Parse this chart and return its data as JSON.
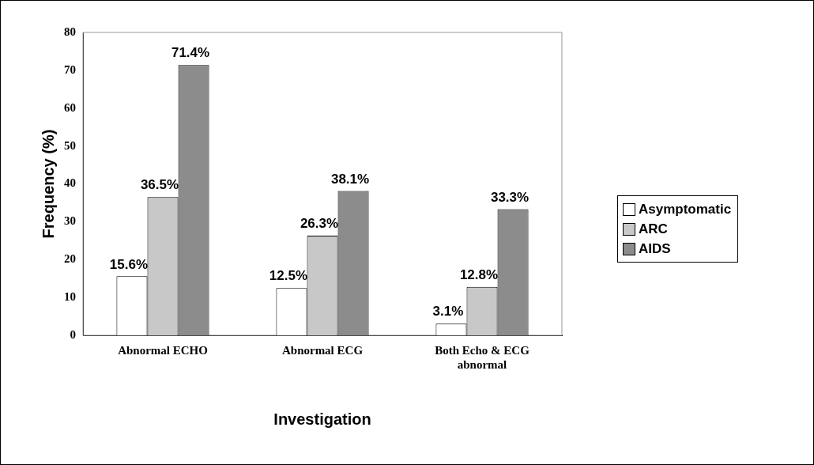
{
  "chart_data": {
    "type": "bar",
    "categories": [
      "Abnormal ECHO",
      "Abnormal ECG",
      "Both Echo & ECG abnormal"
    ],
    "series": [
      {
        "name": "Asymptomatic",
        "color": "#ffffff",
        "values": [
          15.6,
          12.5,
          3.1
        ],
        "value_labels": [
          "15.6%",
          "12.5%",
          "3.1%"
        ]
      },
      {
        "name": "ARC",
        "color": "#c8c8c8",
        "values": [
          36.5,
          26.3,
          12.8
        ],
        "value_labels": [
          "36.5%",
          "26.3%",
          "12.8%"
        ]
      },
      {
        "name": "AIDS",
        "color": "#8c8c8c",
        "values": [
          71.4,
          38.1,
          33.3
        ],
        "value_labels": [
          "71.4%",
          "38.1%",
          "33.3%"
        ]
      }
    ],
    "xlabel": "Investigation",
    "ylabel": "Frequency (%)",
    "ylim": [
      0,
      80
    ],
    "yticks": [
      0,
      10,
      20,
      30,
      40,
      50,
      60,
      70,
      80
    ],
    "grid": false,
    "legend": "right"
  }
}
